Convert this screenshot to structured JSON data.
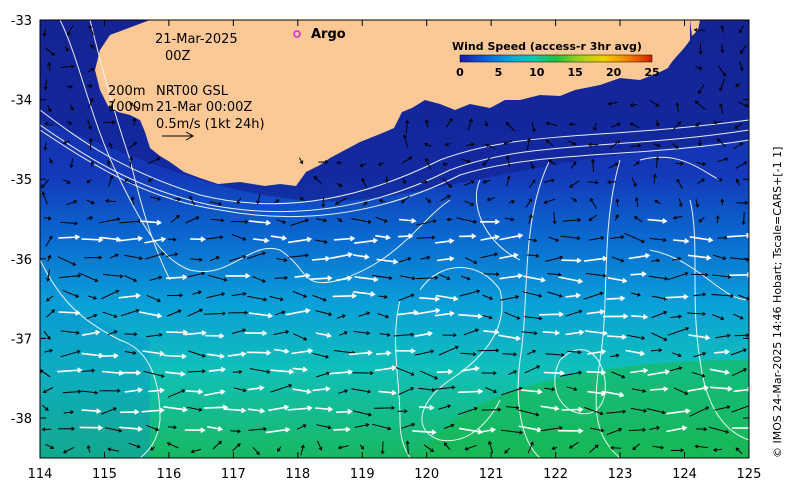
{
  "map": {
    "date": "21-Mar-2025",
    "time": "00Z",
    "depth_200": "200m",
    "depth_1000": "1000m",
    "product": "NRT00 GSL",
    "product_time": "21-Mar 00:00Z",
    "scale_label": "0.5m/s (1kt 24h)",
    "argo_label": "Argo",
    "credit": "© IMOS 24-Mar-2025 14:46 Hobart; Tscale=CARS+[-1 1]"
  },
  "colorbar": {
    "title": "Wind Speed (access-r 3hr avg)",
    "ticks": [
      "0",
      "5",
      "10",
      "15",
      "20",
      "25"
    ],
    "colors": [
      "#1a1aa8",
      "#0a5ad8",
      "#0aa0e0",
      "#10c8b0",
      "#20c040",
      "#a0d020",
      "#f0d000",
      "#f08000",
      "#d02000"
    ]
  },
  "axes": {
    "x_ticks": [
      "114",
      "115",
      "116",
      "117",
      "118",
      "119",
      "120",
      "121",
      "122",
      "123",
      "124",
      "125"
    ],
    "y_ticks": [
      "-33",
      "-34",
      "-35",
      "-36",
      "-37",
      "-38"
    ],
    "xlim": [
      114,
      125
    ],
    "ylim": [
      -38.5,
      -33
    ]
  },
  "colors": {
    "land": "#fcc896",
    "argo": "#e020e0",
    "contour": "#ffffff"
  }
}
